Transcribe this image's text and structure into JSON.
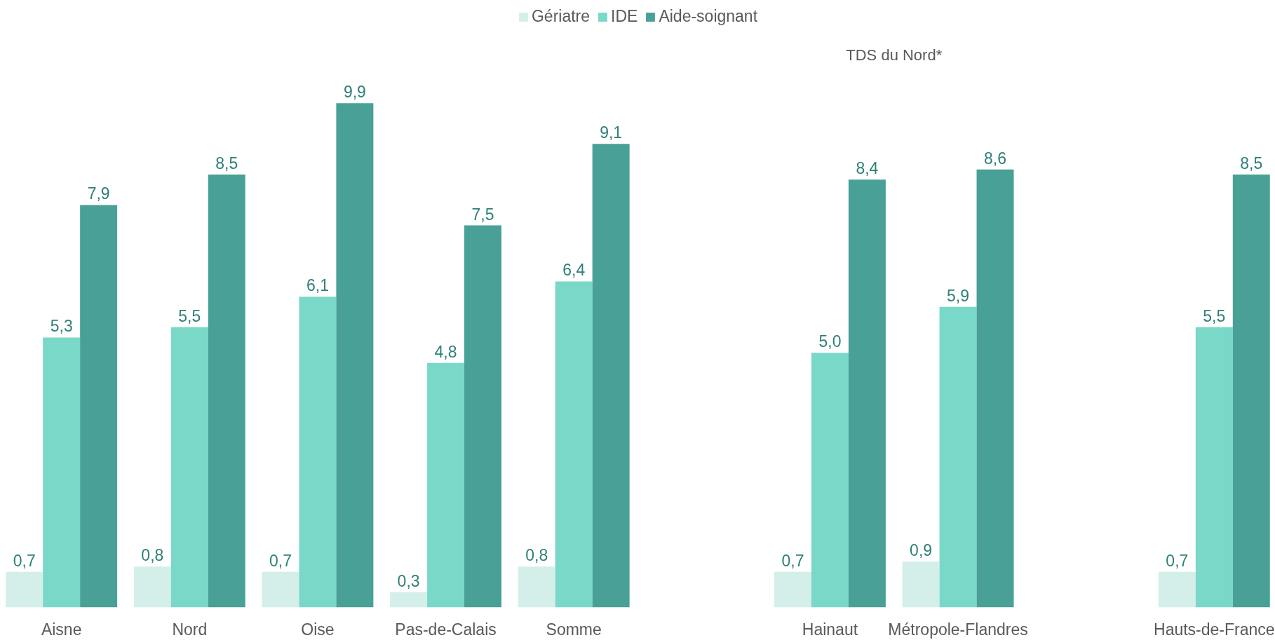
{
  "chart_data": {
    "type": "bar",
    "categories": [
      "Aisne",
      "Nord",
      "Oise",
      "Pas-de-Calais",
      "Somme",
      null,
      "Hainaut",
      "Métropole-Flandres",
      null,
      "Hauts-de-France"
    ],
    "series": [
      {
        "name": "Gériatre",
        "color": "#d4efea",
        "values": [
          0.7,
          0.8,
          0.7,
          0.3,
          0.8,
          null,
          0.7,
          0.9,
          null,
          0.7
        ],
        "value_labels": [
          "0,7",
          "0,8",
          "0,7",
          "0,3",
          "0,8",
          null,
          "0,7",
          "0,9",
          null,
          "0,7"
        ]
      },
      {
        "name": "IDE",
        "color": "#79d8c7",
        "values": [
          5.3,
          5.5,
          6.1,
          4.8,
          6.4,
          null,
          5.0,
          5.9,
          null,
          5.5
        ],
        "value_labels": [
          "5,3",
          "5,5",
          "6,1",
          "4,8",
          "6,4",
          null,
          "5,0",
          "5,9",
          null,
          "5,5"
        ]
      },
      {
        "name": "Aide-soignant",
        "color": "#48a096",
        "values": [
          7.9,
          8.5,
          9.9,
          7.5,
          9.1,
          null,
          8.4,
          8.6,
          null,
          8.5
        ],
        "value_labels": [
          "7,9",
          "8,5",
          "9,9",
          "7,5",
          "9,1",
          null,
          "8,4",
          "8,6",
          null,
          "8,5"
        ]
      }
    ],
    "legend": "top",
    "grid": false,
    "annotations": [
      "TDS du Nord*"
    ]
  }
}
